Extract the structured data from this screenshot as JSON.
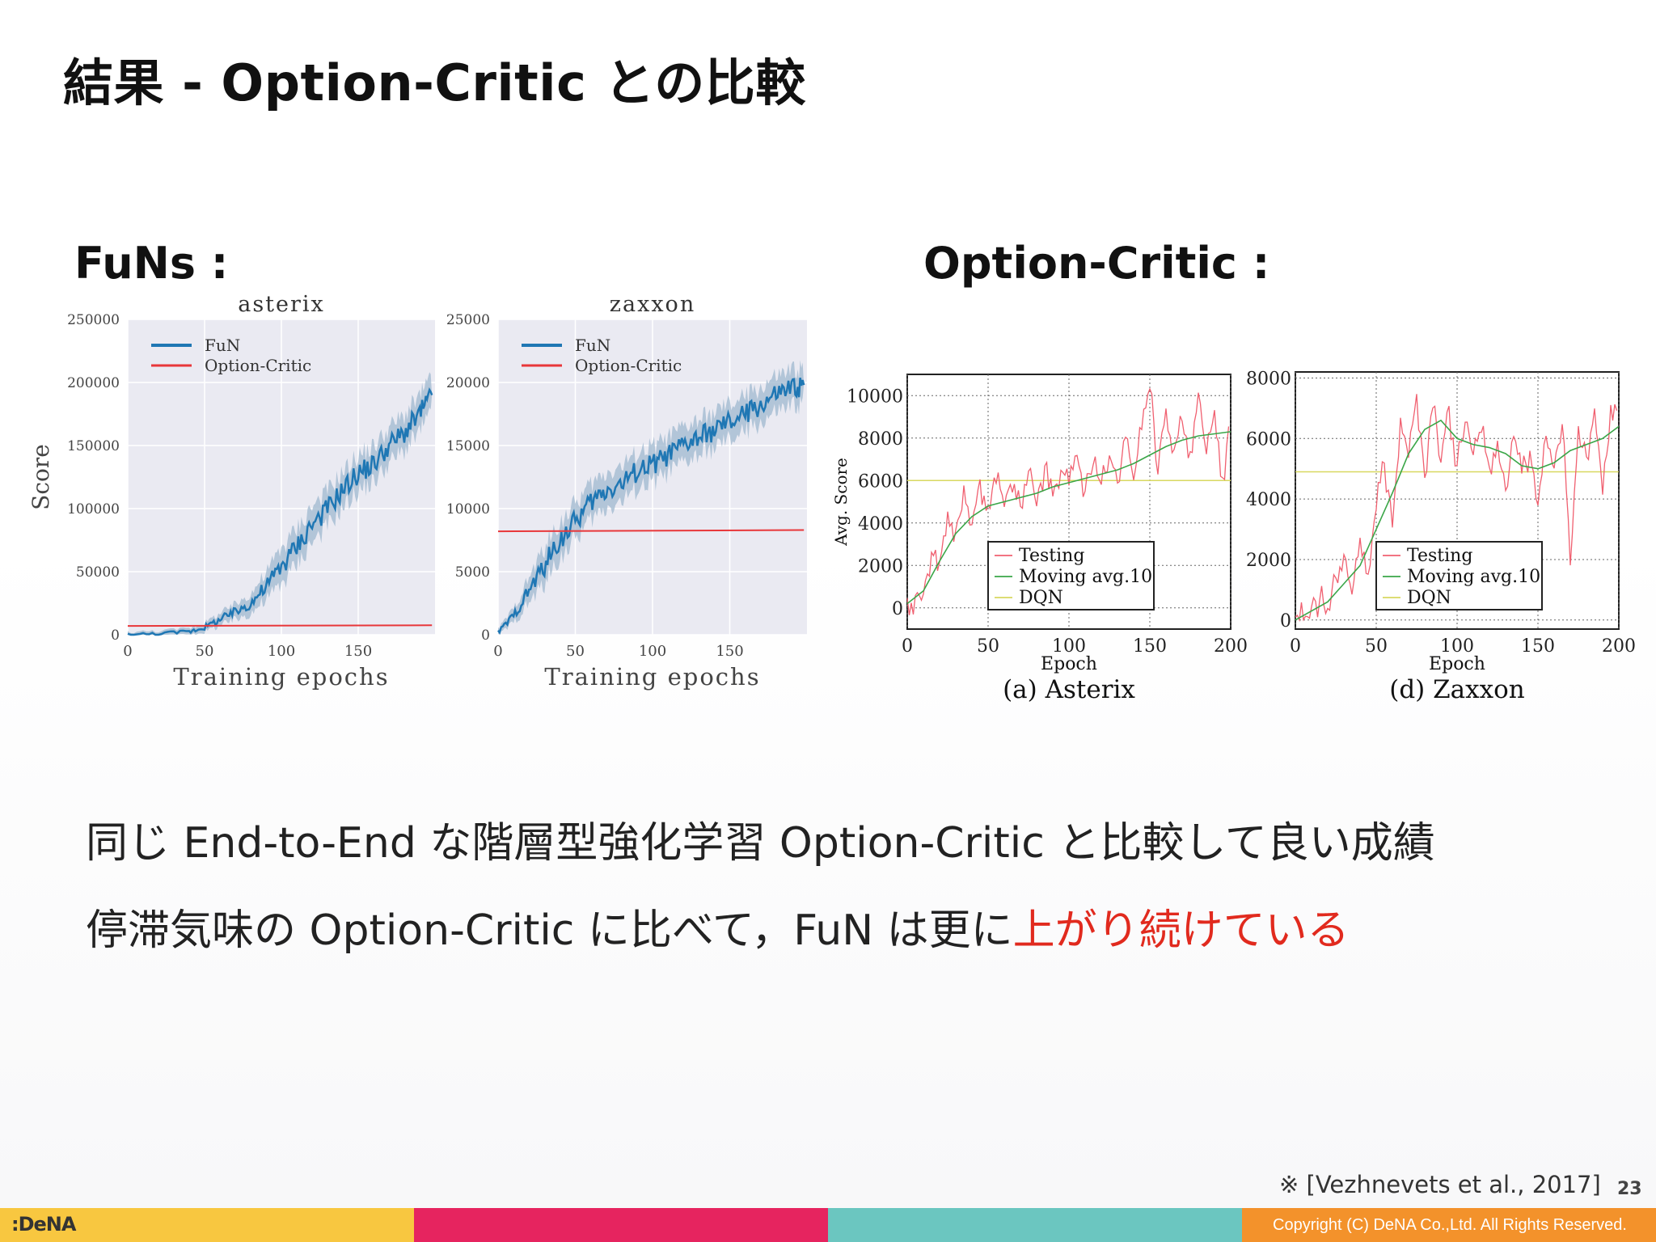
{
  "slide": {
    "title": "結果 - Option-Critic との比較",
    "funs_label": "FuNs :",
    "oc_label": "Option-Critic :",
    "body_line1": "同じ End-to-End な階層型強化学習 Option-Critic と比較して良い成績",
    "body_line2_prefix": "停滞気味の Option-Critic に比べて，FuN は更に",
    "body_line2_highlight": "上がり続けている",
    "citation": "※ [Vezhnevets et al., 2017]",
    "page_number": "23",
    "logo": ":DeNA",
    "copyright": "Copyright (C) DeNA Co.,Ltd. All Rights Reserved."
  },
  "colors": {
    "fun_line": "#1f77b4",
    "fun_band": "#9fb8cf",
    "option_critic_line": "#e8373a",
    "highlight_text": "#e12a1e",
    "plot_bg": "#eaeaf2",
    "testing_line": "#f06070",
    "moving_avg_line": "#3aa648",
    "dqn_line": "#d8d860",
    "footer": [
      "#f8c740",
      "#e6245f",
      "#6bc6c0",
      "#f3922b"
    ]
  },
  "chart_data": [
    {
      "type": "line",
      "title": "asterix",
      "xlabel": "Training epochs",
      "ylabel": "Score",
      "xlim": [
        0,
        200
      ],
      "ylim": [
        0,
        250000
      ],
      "xticks": [
        "0",
        "50",
        "100",
        "150"
      ],
      "yticks": [
        "0",
        "50000",
        "100000",
        "150000",
        "200000",
        "250000"
      ],
      "grid": true,
      "legend": "top-left",
      "series": [
        {
          "name": "FuN",
          "x": [
            0,
            20,
            40,
            50,
            60,
            70,
            80,
            90,
            100,
            110,
            120,
            130,
            140,
            150,
            160,
            170,
            180,
            190,
            198
          ],
          "values": [
            0,
            800,
            2500,
            6000,
            12000,
            18000,
            25000,
            38000,
            55000,
            70000,
            88000,
            100000,
            115000,
            128000,
            135000,
            150000,
            160000,
            175000,
            190000
          ]
        },
        {
          "name": "Option-Critic",
          "x": [
            0,
            198
          ],
          "values": [
            7000,
            7500
          ]
        }
      ]
    },
    {
      "type": "line",
      "title": "zaxxon",
      "xlabel": "Training epochs",
      "ylabel": "",
      "xlim": [
        0,
        200
      ],
      "ylim": [
        0,
        25000
      ],
      "xticks": [
        "0",
        "50",
        "100",
        "150"
      ],
      "yticks": [
        "0",
        "5000",
        "10000",
        "15000",
        "20000",
        "25000"
      ],
      "grid": true,
      "legend": "top-left",
      "series": [
        {
          "name": "FuN",
          "x": [
            0,
            10,
            20,
            30,
            40,
            50,
            60,
            70,
            80,
            90,
            100,
            110,
            120,
            130,
            140,
            150,
            160,
            170,
            180,
            190,
            198
          ],
          "values": [
            200,
            1500,
            3500,
            5500,
            7500,
            9000,
            10500,
            11500,
            12000,
            13000,
            13500,
            14200,
            15000,
            15600,
            16200,
            16800,
            17500,
            18200,
            19000,
            19500,
            19800
          ]
        },
        {
          "name": "Option-Critic",
          "x": [
            0,
            198
          ],
          "values": [
            8200,
            8300
          ]
        }
      ]
    },
    {
      "type": "line",
      "caption": "(a) Asterix",
      "xlabel": "Epoch",
      "ylabel": "Avg. Score",
      "xlim": [
        0,
        200
      ],
      "ylim": [
        -1000,
        11000
      ],
      "xticks": [
        "0",
        "50",
        "100",
        "150",
        "200"
      ],
      "yticks": [
        "0",
        "2000",
        "4000",
        "6000",
        "8000",
        "10000"
      ],
      "grid": true,
      "legend": "bottom-center",
      "series": [
        {
          "name": "Testing",
          "x": [
            0,
            5,
            10,
            15,
            20,
            25,
            30,
            35,
            40,
            45,
            50,
            55,
            60,
            65,
            70,
            75,
            80,
            85,
            90,
            95,
            100,
            105,
            110,
            115,
            120,
            125,
            130,
            135,
            140,
            145,
            150,
            155,
            160,
            165,
            170,
            175,
            180,
            185,
            190,
            195,
            200
          ],
          "values": [
            200,
            300,
            900,
            2600,
            2300,
            4500,
            3600,
            5500,
            4200,
            5800,
            4700,
            6100,
            5000,
            5600,
            4800,
            6300,
            5000,
            6500,
            5200,
            6700,
            5600,
            7300,
            5300,
            7000,
            5800,
            6900,
            6000,
            7800,
            6200,
            8600,
            10500,
            6500,
            9500,
            7200,
            8800,
            7400,
            9900,
            7000,
            9500,
            6000,
            8800
          ]
        },
        {
          "name": "Moving avg.10",
          "x": [
            0,
            10,
            20,
            30,
            40,
            50,
            60,
            70,
            80,
            90,
            100,
            110,
            120,
            130,
            140,
            150,
            160,
            170,
            180,
            190,
            200
          ],
          "values": [
            200,
            800,
            2200,
            3500,
            4300,
            4800,
            5000,
            5200,
            5400,
            5700,
            5900,
            6100,
            6300,
            6500,
            6800,
            7200,
            7600,
            7900,
            8100,
            8200,
            8300
          ]
        },
        {
          "name": "DQN",
          "x": [
            0,
            200
          ],
          "values": [
            6000,
            6000
          ]
        }
      ]
    },
    {
      "type": "line",
      "caption": "(d) Zaxxon",
      "xlabel": "Epoch",
      "ylabel": "",
      "xlim": [
        0,
        200
      ],
      "ylim": [
        -300,
        8200
      ],
      "xticks": [
        "0",
        "50",
        "100",
        "150",
        "200"
      ],
      "yticks": [
        "0",
        "2000",
        "4000",
        "6000",
        "8000"
      ],
      "grid": true,
      "legend": "bottom-center",
      "series": [
        {
          "name": "Testing",
          "x": [
            0,
            5,
            10,
            15,
            20,
            25,
            30,
            35,
            40,
            45,
            50,
            55,
            60,
            65,
            70,
            75,
            80,
            85,
            90,
            95,
            100,
            105,
            110,
            115,
            120,
            125,
            130,
            135,
            140,
            145,
            150,
            155,
            160,
            165,
            170,
            175,
            180,
            185,
            190,
            195,
            200
          ],
          "values": [
            0,
            200,
            300,
            700,
            500,
            1200,
            2200,
            900,
            2800,
            1500,
            3800,
            5200,
            3100,
            6800,
            5500,
            7400,
            4800,
            7200,
            5400,
            6900,
            5000,
            6700,
            5300,
            6400,
            5000,
            5800,
            4300,
            6200,
            4900,
            5500,
            3800,
            6200,
            5000,
            6600,
            2000,
            6400,
            5200,
            7000,
            4200,
            7100,
            6800
          ]
        },
        {
          "name": "Moving avg.10",
          "x": [
            0,
            10,
            20,
            30,
            40,
            50,
            60,
            70,
            80,
            90,
            100,
            110,
            120,
            130,
            140,
            150,
            160,
            170,
            180,
            190,
            200
          ],
          "values": [
            0,
            300,
            600,
            1200,
            1800,
            3000,
            4200,
            5500,
            6300,
            6600,
            6000,
            5800,
            5700,
            5500,
            5100,
            5000,
            5200,
            5600,
            5800,
            6000,
            6400
          ]
        },
        {
          "name": "DQN",
          "x": [
            0,
            200
          ],
          "values": [
            4900,
            4900
          ]
        }
      ]
    }
  ]
}
